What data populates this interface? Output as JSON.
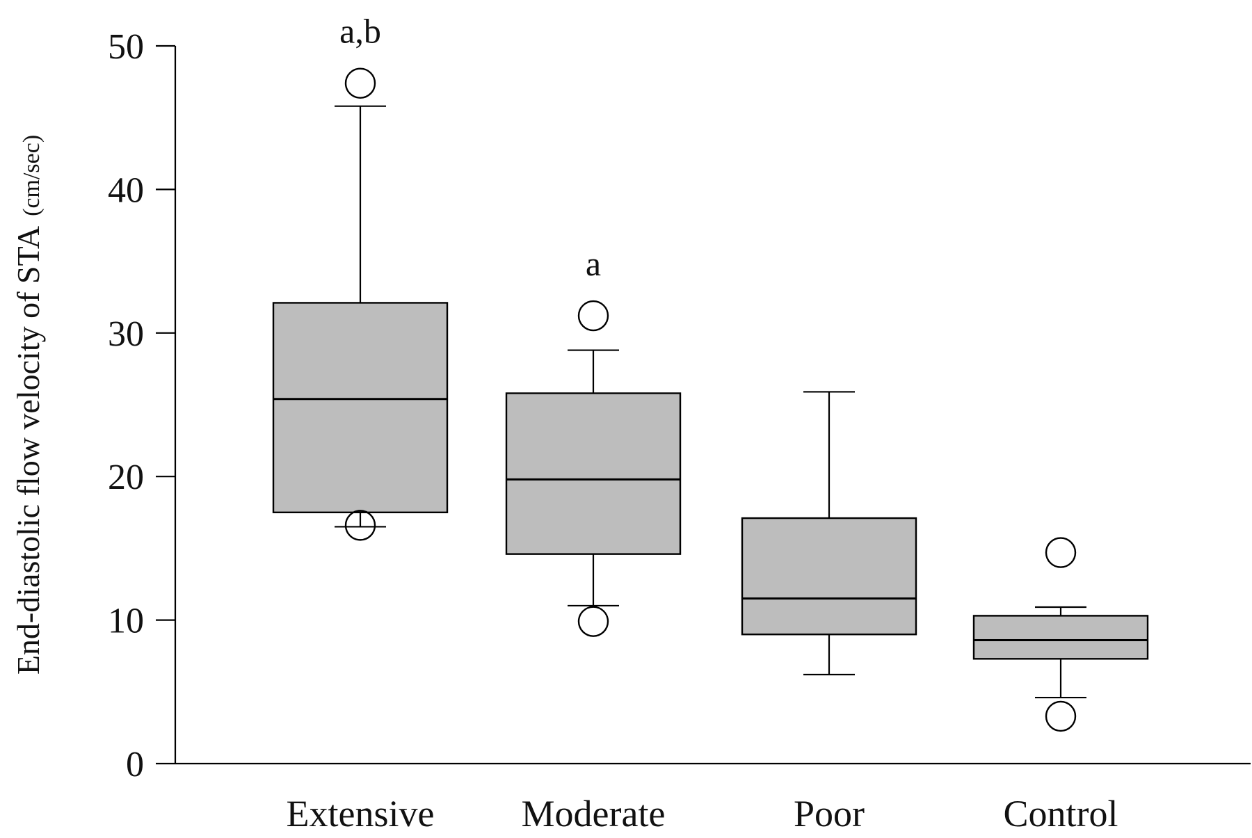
{
  "chart_data": {
    "type": "box",
    "title": "",
    "xlabel": "",
    "ylabel": "End-diastolic flow velocity of STA",
    "ylabel_unit": "(cm/sec)",
    "ylim": [
      0,
      50
    ],
    "yticks": [
      0,
      10,
      20,
      30,
      40,
      50
    ],
    "grid": false,
    "colors": {
      "box_fill": "#bdbdbd",
      "stroke": "#000000"
    },
    "groups": [
      {
        "category": "Extensive",
        "min": 16.5,
        "q1": 17.5,
        "median": 25.4,
        "q3": 32.1,
        "max": 45.8,
        "outliers": [
          47.4,
          16.6
        ],
        "annotation": "a,b"
      },
      {
        "category": "Moderate",
        "min": 11.0,
        "q1": 14.6,
        "median": 19.8,
        "q3": 25.8,
        "max": 28.8,
        "outliers": [
          31.2,
          9.9
        ],
        "annotation": "a"
      },
      {
        "category": "Poor",
        "min": 6.2,
        "q1": 9.0,
        "median": 11.5,
        "q3": 17.1,
        "max": 25.9,
        "outliers": [],
        "annotation": ""
      },
      {
        "category": "Control",
        "min": 4.6,
        "q1": 7.3,
        "median": 8.6,
        "q3": 10.3,
        "max": 10.9,
        "outliers": [
          14.7,
          3.3
        ],
        "annotation": ""
      }
    ]
  }
}
